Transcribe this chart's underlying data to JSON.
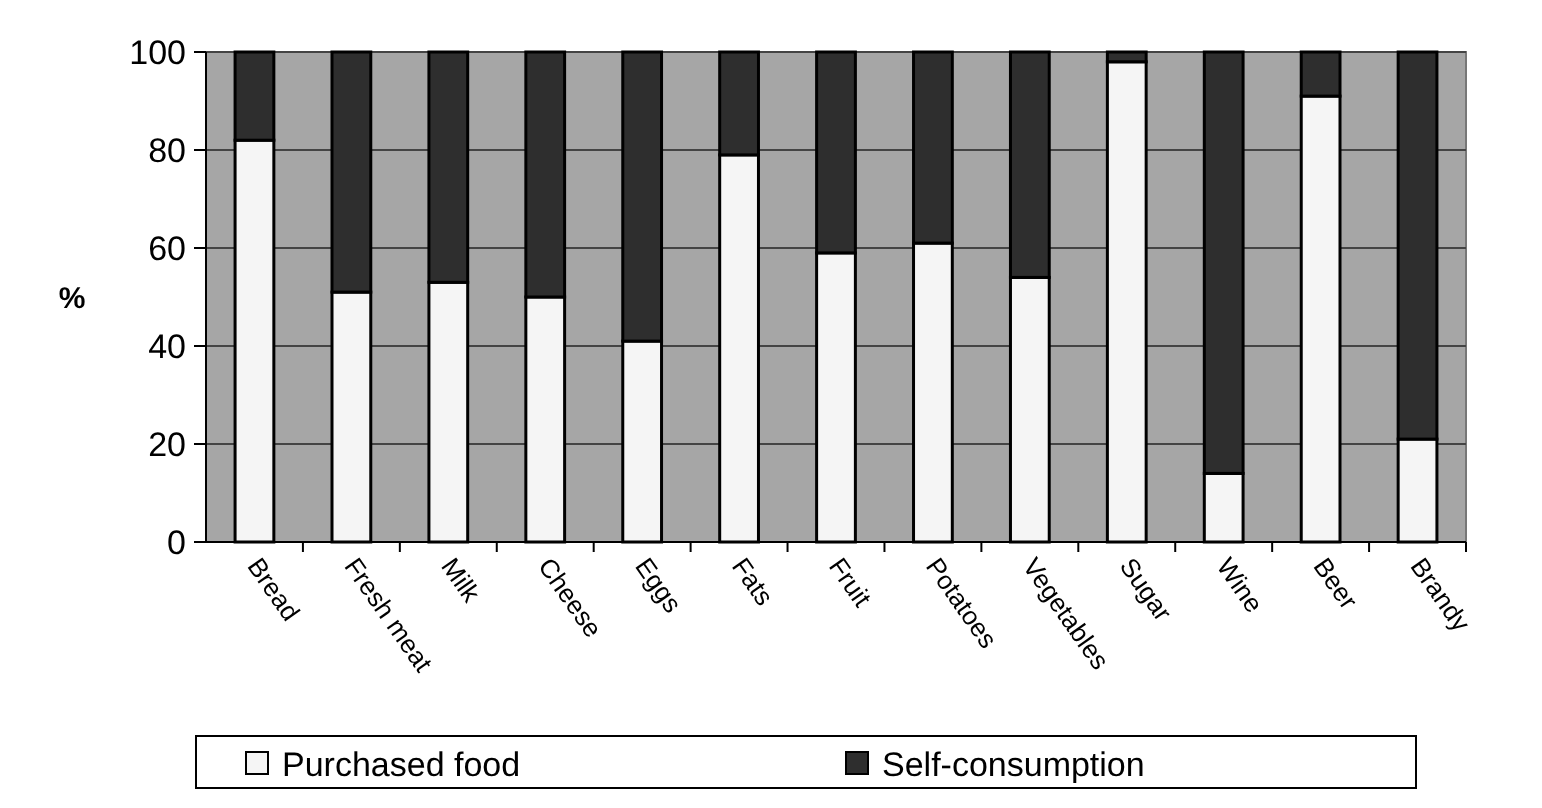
{
  "chart_data": {
    "type": "bar",
    "stacked": true,
    "ylabel": "%",
    "categories": [
      "Bread",
      "Fresh meat",
      "Milk",
      "Cheese",
      "Eggs",
      "Fats",
      "Fruit",
      "Potatoes",
      "Vegetables",
      "Sugar",
      "Wine",
      "Beer",
      "Brandy"
    ],
    "series": [
      {
        "name": "Purchased food",
        "color": "#f5f5f5",
        "values": [
          82,
          51,
          53,
          50,
          41,
          79,
          59,
          61,
          54,
          98,
          14,
          91,
          21
        ]
      },
      {
        "name": "Self-consumption",
        "color": "#2e2e2e",
        "values": [
          18,
          49,
          47,
          50,
          59,
          21,
          41,
          39,
          46,
          2,
          86,
          9,
          79
        ]
      }
    ],
    "ylim": [
      0,
      100
    ],
    "yticks": [
      0,
      20,
      40,
      60,
      80,
      100
    ],
    "grid": "y",
    "legend": "bottom"
  }
}
